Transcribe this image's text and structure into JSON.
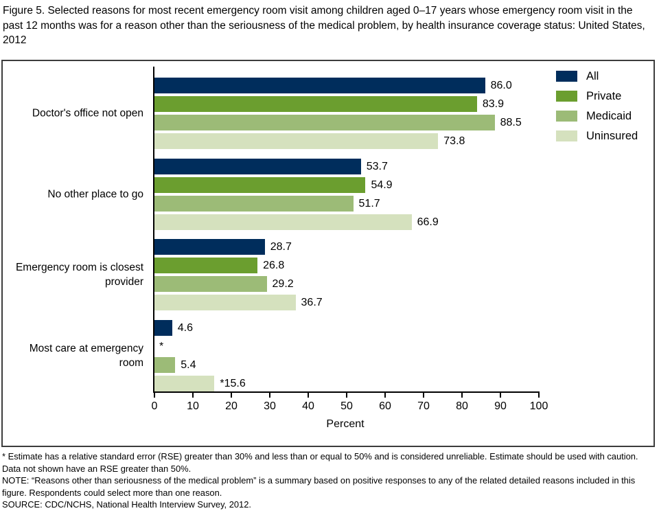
{
  "title": "Figure 5. Selected reasons for most recent emergency room visit among children aged 0–17 years whose emergency room visit in the past 12 months was for a reason other than the seriousness of the medical problem, by health insurance coverage status: United States, 2012",
  "notes": {
    "asterisk": "* Estimate has a relative standard error (RSE) greater than 30% and less than or equal to 50% and is considered unreliable. Estimate should be used with caution. Data not shown have an RSE greater than 50%.",
    "note": "NOTE: “Reasons other than seriousness of the medical problem” is a summary based on positive responses to any of the related detailed reasons included in this figure. Respondents could select more than one reason.",
    "source": "SOURCE: CDC/NCHS, National Health Interview Survey, 2012."
  },
  "colors": {
    "all": "#002d5c",
    "private": "#6b9e2f",
    "medicaid": "#9cbb77",
    "uninsured": "#d5e1be",
    "axis": "#000000",
    "frame": "#3c3c3c"
  },
  "chart_data": {
    "type": "bar",
    "orientation": "horizontal",
    "title": "",
    "xlabel": "Percent",
    "ylabel": "",
    "xlim": [
      0,
      100
    ],
    "xticks": [
      0,
      10,
      20,
      30,
      40,
      50,
      60,
      70,
      80,
      90,
      100
    ],
    "grid": false,
    "legend_position": "top-right",
    "categories": [
      "Doctor's office not open",
      "No other place to go",
      "Emergency room is closest provider",
      "Most care at emergency room"
    ],
    "series": [
      {
        "name": "All",
        "color": "#002d5c",
        "values": [
          86.0,
          53.7,
          28.7,
          4.6
        ],
        "labels": [
          "86.0",
          "53.7",
          "28.7",
          "4.6"
        ]
      },
      {
        "name": "Private",
        "color": "#6b9e2f",
        "values": [
          83.9,
          54.9,
          26.8,
          null
        ],
        "labels": [
          "83.9",
          "54.9",
          "26.8",
          "*"
        ]
      },
      {
        "name": "Medicaid",
        "color": "#9cbb77",
        "values": [
          88.5,
          51.7,
          29.2,
          5.4
        ],
        "labels": [
          "88.5",
          "51.7",
          "29.2",
          "5.4"
        ]
      },
      {
        "name": "Uninsured",
        "color": "#d5e1be",
        "values": [
          73.8,
          66.9,
          36.7,
          15.6
        ],
        "labels": [
          "73.8",
          "66.9",
          "36.7",
          "*15.6"
        ]
      }
    ]
  }
}
